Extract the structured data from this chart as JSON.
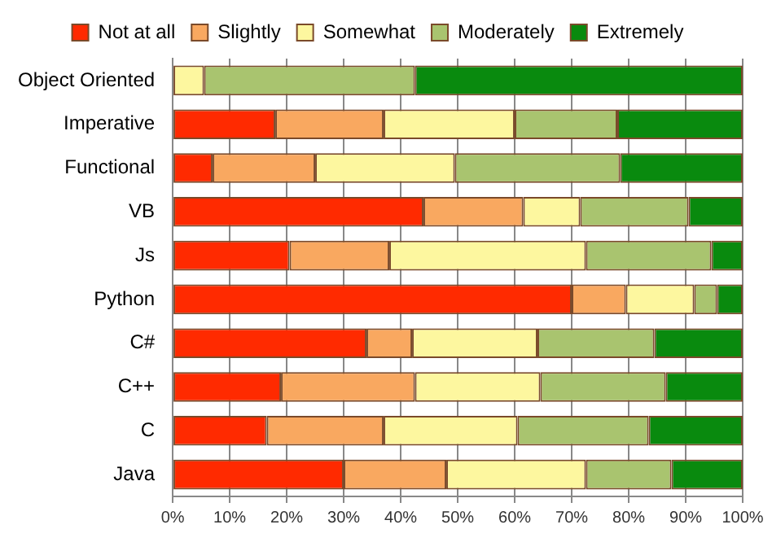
{
  "chart_data": {
    "type": "bar",
    "orientation": "horizontal",
    "stacked": true,
    "categories": [
      "Object Oriented",
      "Imperative",
      "Functional",
      "VB",
      "Js",
      "Python",
      "C#",
      "C++",
      "C",
      "Java"
    ],
    "series": [
      {
        "name": "Not at all",
        "color": "#ff2a00",
        "values": [
          0,
          18,
          7,
          44,
          20.5,
          70,
          34,
          19,
          16.5,
          30
        ]
      },
      {
        "name": "Slightly",
        "color": "#f9a860",
        "values": [
          0,
          19,
          18,
          17.5,
          17.5,
          9.5,
          8,
          23.5,
          20.5,
          18
        ]
      },
      {
        "name": "Somewhat",
        "color": "#fdf79f",
        "values": [
          5.5,
          23,
          24.5,
          10,
          34.5,
          12,
          22,
          22,
          23.5,
          24.5
        ]
      },
      {
        "name": "Moderately",
        "color": "#a9c46f",
        "values": [
          37,
          18,
          29,
          19,
          22,
          4,
          20.5,
          22,
          23,
          15
        ]
      },
      {
        "name": "Extremely",
        "color": "#098a0e",
        "values": [
          57.5,
          22,
          21.5,
          9.5,
          5.5,
          4.5,
          15.5,
          13.5,
          16.5,
          12.5
        ]
      }
    ],
    "xlim": [
      0,
      100
    ],
    "xticks": [
      {
        "value": 0,
        "label": "0%"
      },
      {
        "value": 10,
        "label": "10%"
      },
      {
        "value": 20,
        "label": "20%"
      },
      {
        "value": 30,
        "label": "30%"
      },
      {
        "value": 40,
        "label": "40%"
      },
      {
        "value": 50,
        "label": "50%"
      },
      {
        "value": 60,
        "label": "60%"
      },
      {
        "value": 70,
        "label": "70%"
      },
      {
        "value": 80,
        "label": "80%"
      },
      {
        "value": 90,
        "label": "90%"
      },
      {
        "value": 100,
        "label": "100%"
      }
    ],
    "grid": "x",
    "legend": "top"
  }
}
